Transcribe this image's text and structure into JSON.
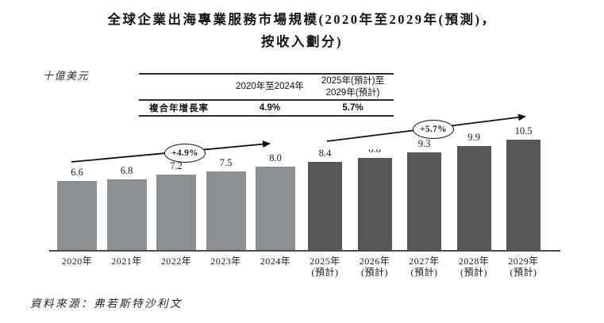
{
  "title": {
    "line1": "全球企業出海專業服務市場規模(2020年至2029年(預測)，",
    "line2": "按收入劃分)"
  },
  "unit_label": "十億美元",
  "summary_table": {
    "col_headers": [
      "",
      "2020年至2024年",
      "2025年(預計)至\n2029年(預計)"
    ],
    "row_label": "複合年增長率",
    "values": [
      "4.9%",
      "5.7%"
    ]
  },
  "annotations": [
    {
      "text": "+4.9%",
      "period": "2020年至2024年"
    },
    {
      "text": "+5.7%",
      "period": "2025年(預計)至2029年(預計)"
    }
  ],
  "source": "資料來源：弗若斯特沙利文",
  "colors": {
    "bar_historical": "#8c8f91",
    "bar_forecast": "#57575a",
    "axis": "#4d4d4d",
    "arrow": "#111111"
  },
  "chart_data": {
    "type": "bar",
    "title": "全球企業出海專業服務市場規模(2020年至2029年(預測)，按收入劃分)",
    "ylabel": "十億美元",
    "xlabel": "",
    "categories": [
      "2020年",
      "2021年",
      "2022年",
      "2023年",
      "2024年",
      "2025年\n(預計)",
      "2026年\n(預計)",
      "2027年\n(預計)",
      "2028年\n(預計)",
      "2029年\n(預計)"
    ],
    "values": [
      6.6,
      6.8,
      7.2,
      7.5,
      8.0,
      8.4,
      8.8,
      9.3,
      9.9,
      10.5
    ],
    "forecast_start_index": 5,
    "ylim": [
      0,
      11
    ],
    "grid": false,
    "legend": false,
    "cagr": [
      {
        "period": "2020年至2024年",
        "value": "4.9%"
      },
      {
        "period": "2025年(預計)至2029年(預計)",
        "value": "5.7%"
      }
    ],
    "clipped_value_label_index": 6
  }
}
